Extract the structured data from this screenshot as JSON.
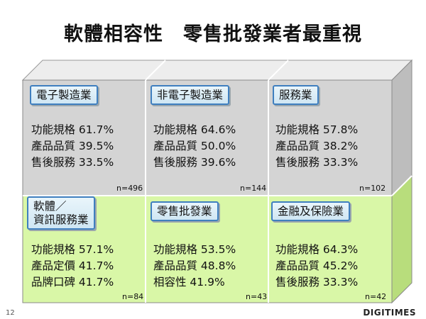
{
  "slide": {
    "title": "軟體相容性　零售批發業者最重視",
    "page_number": "12",
    "logo": "DIGITIMES"
  },
  "colors": {
    "top_row_fill": "#d4d4d4",
    "bottom_row_fill": "#d9f7a7",
    "tag_border": "#3f7fbf"
  },
  "cells": [
    {
      "label_lines": [
        "電子製造業"
      ],
      "metrics": [
        "功能規格 61.7%",
        "產品品質 39.5%",
        "售後服務 33.5%"
      ],
      "n": "n=496"
    },
    {
      "label_lines": [
        "非電子製造業"
      ],
      "metrics": [
        "功能規格 64.6%",
        "產品品質 50.0%",
        "售後服務 39.6%"
      ],
      "n": "n=144"
    },
    {
      "label_lines": [
        "服務業"
      ],
      "metrics": [
        "功能規格 57.8%",
        "產品品質 38.2%",
        "售後服務 33.3%"
      ],
      "n": "n=102"
    },
    {
      "label_lines": [
        "軟體／",
        "資訊服務業"
      ],
      "metrics": [
        "功能規格 57.1%",
        "產品定價 41.7%",
        "品牌口碑 41.7%"
      ],
      "n": "n=84"
    },
    {
      "label_lines": [
        "零售批發業"
      ],
      "metrics": [
        "功能規格 53.5%",
        "產品品質 48.8%",
        "相容性 41.9%"
      ],
      "n": "n=43"
    },
    {
      "label_lines": [
        "金融及保險業"
      ],
      "metrics": [
        "功能規格 64.3%",
        "產品品質 45.2%",
        "售後服務 33.3%"
      ],
      "n": "n=42"
    }
  ]
}
